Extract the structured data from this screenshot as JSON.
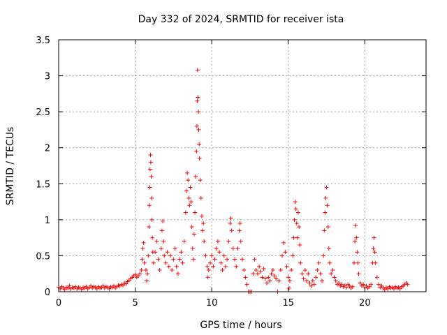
{
  "chart_data": {
    "type": "scatter",
    "title": "Day 332 of 2024, SRMTID for receiver ista",
    "xlabel": "GPS time / hours",
    "ylabel": "SRMTID / TECUs",
    "xlim": [
      0,
      24
    ],
    "ylim": [
      0,
      3.5
    ],
    "x_ticks": [
      0,
      5,
      10,
      15,
      20
    ],
    "y_ticks": [
      0,
      0.5,
      1,
      1.5,
      2,
      2.5,
      3,
      3.5
    ],
    "y_tick_labels": [
      "0",
      "0.5",
      "1",
      "1.5",
      "2",
      "2.5",
      "3",
      "3.5"
    ],
    "grid": true,
    "legend": "none",
    "marker": "+",
    "color": "#ff0000",
    "series": [
      {
        "points": [
          [
            0.0,
            0.06
          ],
          [
            0.1,
            0.04
          ],
          [
            0.2,
            0.07
          ],
          [
            0.3,
            0.05
          ],
          [
            0.4,
            0.03
          ],
          [
            0.5,
            0.06
          ],
          [
            0.6,
            0.05
          ],
          [
            0.7,
            0.08
          ],
          [
            0.8,
            0.04
          ],
          [
            0.9,
            0.06
          ],
          [
            1.0,
            0.05
          ],
          [
            1.1,
            0.07
          ],
          [
            1.2,
            0.04
          ],
          [
            1.3,
            0.06
          ],
          [
            1.4,
            0.05
          ],
          [
            1.5,
            0.03
          ],
          [
            1.6,
            0.06
          ],
          [
            1.7,
            0.05
          ],
          [
            1.8,
            0.07
          ],
          [
            1.9,
            0.04
          ],
          [
            2.0,
            0.06
          ],
          [
            2.1,
            0.08
          ],
          [
            2.2,
            0.05
          ],
          [
            2.3,
            0.07
          ],
          [
            2.4,
            0.06
          ],
          [
            2.5,
            0.04
          ],
          [
            2.6,
            0.07
          ],
          [
            2.7,
            0.05
          ],
          [
            2.8,
            0.06
          ],
          [
            2.9,
            0.08
          ],
          [
            3.0,
            0.05
          ],
          [
            3.1,
            0.07
          ],
          [
            3.2,
            0.06
          ],
          [
            3.3,
            0.04
          ],
          [
            3.4,
            0.07
          ],
          [
            3.5,
            0.06
          ],
          [
            3.6,
            0.08
          ],
          [
            3.7,
            0.05
          ],
          [
            3.8,
            0.07
          ],
          [
            3.9,
            0.09
          ],
          [
            4.0,
            0.08
          ],
          [
            4.1,
            0.1
          ],
          [
            4.2,
            0.09
          ],
          [
            4.3,
            0.12
          ],
          [
            4.4,
            0.11
          ],
          [
            4.5,
            0.14
          ],
          [
            4.6,
            0.16
          ],
          [
            4.7,
            0.18
          ],
          [
            4.8,
            0.2
          ],
          [
            4.9,
            0.22
          ],
          [
            5.0,
            0.24
          ],
          [
            5.1,
            0.2
          ],
          [
            5.2,
            0.22
          ],
          [
            5.3,
            0.25
          ],
          [
            5.4,
            0.3
          ],
          [
            5.45,
            0.45
          ],
          [
            5.5,
            0.6
          ],
          [
            5.55,
            0.68
          ],
          [
            5.6,
            0.4
          ],
          [
            5.7,
            0.3
          ],
          [
            5.75,
            0.15
          ],
          [
            5.8,
            0.25
          ],
          [
            5.85,
            0.5
          ],
          [
            5.9,
            0.9
          ],
          [
            5.92,
            1.2
          ],
          [
            5.95,
            1.45
          ],
          [
            5.97,
            1.7
          ],
          [
            6.0,
            1.9
          ],
          [
            6.02,
            1.8
          ],
          [
            6.05,
            1.6
          ],
          [
            6.08,
            1.3
          ],
          [
            6.1,
            1.0
          ],
          [
            6.12,
            0.75
          ],
          [
            6.15,
            0.55
          ],
          [
            6.2,
            0.4
          ],
          [
            6.3,
            0.55
          ],
          [
            6.4,
            0.7
          ],
          [
            6.5,
            0.45
          ],
          [
            6.6,
            0.3
          ],
          [
            6.7,
            0.6
          ],
          [
            6.75,
            0.85
          ],
          [
            6.8,
            0.98
          ],
          [
            6.85,
            0.7
          ],
          [
            6.9,
            0.5
          ],
          [
            7.0,
            0.4
          ],
          [
            7.1,
            0.55
          ],
          [
            7.2,
            0.35
          ],
          [
            7.3,
            0.5
          ],
          [
            7.4,
            0.3
          ],
          [
            7.5,
            0.45
          ],
          [
            7.6,
            0.6
          ],
          [
            7.7,
            0.35
          ],
          [
            7.8,
            0.25
          ],
          [
            7.9,
            0.45
          ],
          [
            8.0,
            0.55
          ],
          [
            8.1,
            0.4
          ],
          [
            8.2,
            0.7
          ],
          [
            8.3,
            1.1
          ],
          [
            8.35,
            1.4
          ],
          [
            8.4,
            1.65
          ],
          [
            8.45,
            1.55
          ],
          [
            8.5,
            1.3
          ],
          [
            8.55,
            1.2
          ],
          [
            8.6,
            1.45
          ],
          [
            8.65,
            1.25
          ],
          [
            8.7,
            0.9
          ],
          [
            8.75,
            0.6
          ],
          [
            8.8,
            0.45
          ],
          [
            8.85,
            0.8
          ],
          [
            8.9,
            1.1
          ],
          [
            8.95,
            1.6
          ],
          [
            9.0,
            1.95
          ],
          [
            9.03,
            2.3
          ],
          [
            9.05,
            2.65
          ],
          [
            9.07,
            3.08
          ],
          [
            9.1,
            2.7
          ],
          [
            9.13,
            2.5
          ],
          [
            9.15,
            2.25
          ],
          [
            9.18,
            2.05
          ],
          [
            9.2,
            1.85
          ],
          [
            9.25,
            1.55
          ],
          [
            9.3,
            1.3
          ],
          [
            9.35,
            1.05
          ],
          [
            9.4,
            0.85
          ],
          [
            9.45,
            0.95
          ],
          [
            9.5,
            0.7
          ],
          [
            9.6,
            0.5
          ],
          [
            9.7,
            0.35
          ],
          [
            9.75,
            0.2
          ],
          [
            9.8,
            0.3
          ],
          [
            9.9,
            0.4
          ],
          [
            10.0,
            0.5
          ],
          [
            10.1,
            0.35
          ],
          [
            10.2,
            0.45
          ],
          [
            10.3,
            0.6
          ],
          [
            10.4,
            0.7
          ],
          [
            10.5,
            0.55
          ],
          [
            10.6,
            0.4
          ],
          [
            10.7,
            0.3
          ],
          [
            10.8,
            0.5
          ],
          [
            10.9,
            0.35
          ],
          [
            11.0,
            0.45
          ],
          [
            11.1,
            0.7
          ],
          [
            11.2,
            0.95
          ],
          [
            11.25,
            1.02
          ],
          [
            11.3,
            0.85
          ],
          [
            11.4,
            0.6
          ],
          [
            11.5,
            0.45
          ],
          [
            11.6,
            0.35
          ],
          [
            11.7,
            0.6
          ],
          [
            11.8,
            0.85
          ],
          [
            11.85,
            0.95
          ],
          [
            11.9,
            0.7
          ],
          [
            12.0,
            0.45
          ],
          [
            12.1,
            0.3
          ],
          [
            12.2,
            0.2
          ],
          [
            12.3,
            0.1
          ],
          [
            12.4,
            0.0
          ],
          [
            12.5,
            0.0
          ],
          [
            12.6,
            0.0
          ],
          [
            12.7,
            0.25
          ],
          [
            12.8,
            0.45
          ],
          [
            12.9,
            0.3
          ],
          [
            13.0,
            0.25
          ],
          [
            13.1,
            0.35
          ],
          [
            13.2,
            0.28
          ],
          [
            13.3,
            0.2
          ],
          [
            13.4,
            0.32
          ],
          [
            13.5,
            0.18
          ],
          [
            13.6,
            0.12
          ],
          [
            13.7,
            0.2
          ],
          [
            13.8,
            0.15
          ],
          [
            13.9,
            0.25
          ],
          [
            14.0,
            0.3
          ],
          [
            14.1,
            0.22
          ],
          [
            14.2,
            0.18
          ],
          [
            14.3,
            0.0
          ],
          [
            14.4,
            0.15
          ],
          [
            14.5,
            0.3
          ],
          [
            14.6,
            0.5
          ],
          [
            14.7,
            0.68
          ],
          [
            14.8,
            0.55
          ],
          [
            14.9,
            0.35
          ],
          [
            15.0,
            0.2
          ],
          [
            15.05,
            0.05
          ],
          [
            15.1,
            0.15
          ],
          [
            15.2,
            0.3
          ],
          [
            15.3,
            0.5
          ],
          [
            15.35,
            0.75
          ],
          [
            15.4,
            1.0
          ],
          [
            15.45,
            1.25
          ],
          [
            15.5,
            1.15
          ],
          [
            15.55,
            0.95
          ],
          [
            15.6,
            0.75
          ],
          [
            15.65,
            1.1
          ],
          [
            15.7,
            0.9
          ],
          [
            15.75,
            0.65
          ],
          [
            15.8,
            0.4
          ],
          [
            15.9,
            0.25
          ],
          [
            16.0,
            0.18
          ],
          [
            16.1,
            0.3
          ],
          [
            16.2,
            0.15
          ],
          [
            16.3,
            0.25
          ],
          [
            16.4,
            0.12
          ],
          [
            16.5,
            0.08
          ],
          [
            16.6,
            0.15
          ],
          [
            16.7,
            0.1
          ],
          [
            16.8,
            0.2
          ],
          [
            16.9,
            0.3
          ],
          [
            17.0,
            0.4
          ],
          [
            17.1,
            0.25
          ],
          [
            17.2,
            0.15
          ],
          [
            17.3,
            0.5
          ],
          [
            17.35,
            0.85
          ],
          [
            17.4,
            1.1
          ],
          [
            17.45,
            1.3
          ],
          [
            17.5,
            1.45
          ],
          [
            17.55,
            1.2
          ],
          [
            17.6,
            0.9
          ],
          [
            17.65,
            0.6
          ],
          [
            17.7,
            0.4
          ],
          [
            17.8,
            0.25
          ],
          [
            17.9,
            0.3
          ],
          [
            18.0,
            0.2
          ],
          [
            18.1,
            0.15
          ],
          [
            18.2,
            0.1
          ],
          [
            18.3,
            0.12
          ],
          [
            18.4,
            0.08
          ],
          [
            18.5,
            0.1
          ],
          [
            18.6,
            0.07
          ],
          [
            18.7,
            0.09
          ],
          [
            18.8,
            0.06
          ],
          [
            18.9,
            0.1
          ],
          [
            19.0,
            0.08
          ],
          [
            19.1,
            0.05
          ],
          [
            19.2,
            0.07
          ],
          [
            19.3,
            0.4
          ],
          [
            19.35,
            0.7
          ],
          [
            19.4,
            0.92
          ],
          [
            19.45,
            0.75
          ],
          [
            19.5,
            0.55
          ],
          [
            19.55,
            0.4
          ],
          [
            19.6,
            0.25
          ],
          [
            19.7,
            0.12
          ],
          [
            19.8,
            0.08
          ],
          [
            19.9,
            0.1
          ],
          [
            20.0,
            0.06
          ],
          [
            20.1,
            0.08
          ],
          [
            20.2,
            0.05
          ],
          [
            20.3,
            0.07
          ],
          [
            20.4,
            0.1
          ],
          [
            20.5,
            0.4
          ],
          [
            20.55,
            0.6
          ],
          [
            20.6,
            0.75
          ],
          [
            20.65,
            0.55
          ],
          [
            20.7,
            0.4
          ],
          [
            20.8,
            0.2
          ],
          [
            20.9,
            0.1
          ],
          [
            21.0,
            0.06
          ],
          [
            21.1,
            0.08
          ],
          [
            21.2,
            0.05
          ],
          [
            21.3,
            0.03
          ],
          [
            21.4,
            0.06
          ],
          [
            21.5,
            0.04
          ],
          [
            21.6,
            0.07
          ],
          [
            21.7,
            0.05
          ],
          [
            21.8,
            0.06
          ],
          [
            21.9,
            0.04
          ],
          [
            22.0,
            0.07
          ],
          [
            22.1,
            0.05
          ],
          [
            22.2,
            0.06
          ],
          [
            22.3,
            0.04
          ],
          [
            22.4,
            0.07
          ],
          [
            22.5,
            0.08
          ],
          [
            22.6,
            0.1
          ],
          [
            22.7,
            0.12
          ],
          [
            22.8,
            0.1
          ]
        ]
      }
    ]
  }
}
